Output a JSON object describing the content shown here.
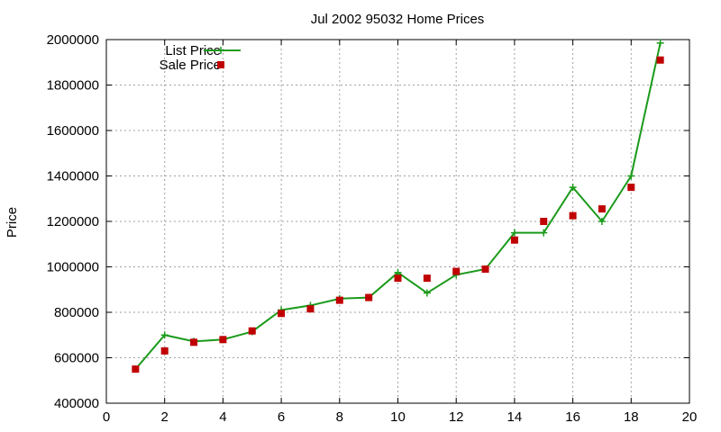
{
  "chart_data": {
    "type": "line",
    "title": "Jul 2002 95032 Home Prices",
    "xlabel": "",
    "ylabel": "Price",
    "xlim": [
      0,
      20
    ],
    "ylim": [
      400000,
      2000000
    ],
    "xticks": [
      0,
      2,
      4,
      6,
      8,
      10,
      12,
      14,
      16,
      18,
      20
    ],
    "xtick_labels": [
      "0",
      "2",
      "4",
      "6",
      "8",
      "10",
      "12",
      "14",
      "16",
      "18",
      "20"
    ],
    "yticks": [
      400000,
      600000,
      800000,
      1000000,
      1200000,
      1400000,
      1600000,
      1800000,
      2000000
    ],
    "ytick_labels": [
      "400000",
      "600000",
      "800000",
      "1000000",
      "1200000",
      "1400000",
      "1600000",
      "1800000",
      "2000000"
    ],
    "grid": true,
    "legend_position": "top-left",
    "series": [
      {
        "name": "List Price",
        "kind": "line-with-plus-markers",
        "color": "#1a9a1a",
        "x": [
          1,
          2,
          3,
          4,
          5,
          6,
          7,
          8,
          9,
          10,
          11,
          12,
          13,
          14,
          15,
          16,
          17,
          18,
          19
        ],
        "values": [
          550000,
          700000,
          672000,
          680000,
          715000,
          810000,
          830000,
          860000,
          865000,
          975000,
          885000,
          965000,
          990000,
          1150000,
          1150000,
          1350000,
          1200000,
          1400000,
          1985000
        ]
      },
      {
        "name": "Sale Price",
        "kind": "square-markers",
        "color": "#c00000",
        "x": [
          1,
          2,
          3,
          4,
          5,
          6,
          7,
          8,
          9,
          10,
          11,
          12,
          13,
          14,
          15,
          16,
          17,
          18,
          19
        ],
        "values": [
          550000,
          630000,
          668000,
          680000,
          718000,
          795000,
          815000,
          853000,
          865000,
          950000,
          950000,
          980000,
          990000,
          1118000,
          1200000,
          1225000,
          1255000,
          1350000,
          1910000
        ]
      }
    ]
  }
}
